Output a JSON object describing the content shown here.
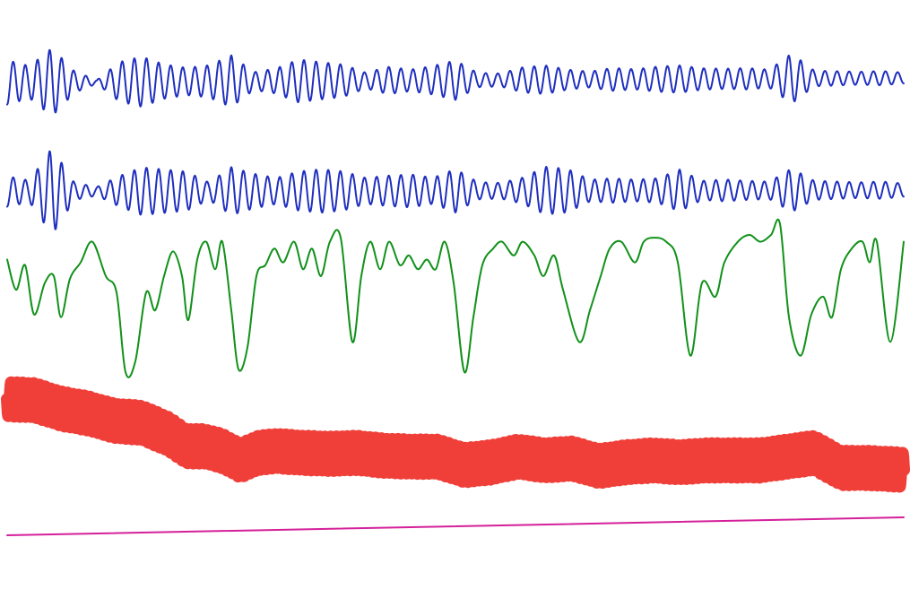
{
  "chart_data": {
    "type": "line",
    "title": "",
    "xlabel": "",
    "ylabel": "",
    "grid": false,
    "legend": "none",
    "axes_visible": false,
    "x_range": [
      0,
      1000
    ],
    "description_of_units": "",
    "series": [
      {
        "key": "trace1",
        "color": "#1f2fbf",
        "style": "oscillation",
        "y_range": [
          -1.0,
          1.0
        ],
        "drift": [
          0.15,
          -0.25
        ],
        "cycles": 74,
        "values": [
          [
            0,
            0.62
          ],
          [
            25,
            0.45
          ],
          [
            50,
            0.95
          ],
          [
            75,
            0.3
          ],
          [
            100,
            0.05
          ],
          [
            125,
            0.55
          ],
          [
            150,
            0.7
          ],
          [
            175,
            0.48
          ],
          [
            200,
            0.38
          ],
          [
            225,
            0.45
          ],
          [
            250,
            0.72
          ],
          [
            275,
            0.25
          ],
          [
            300,
            0.35
          ],
          [
            325,
            0.6
          ],
          [
            350,
            0.52
          ],
          [
            375,
            0.45
          ],
          [
            400,
            0.22
          ],
          [
            425,
            0.38
          ],
          [
            450,
            0.3
          ],
          [
            475,
            0.4
          ],
          [
            500,
            0.55
          ],
          [
            525,
            0.2
          ],
          [
            550,
            0.18
          ],
          [
            575,
            0.35
          ],
          [
            600,
            0.4
          ],
          [
            625,
            0.28
          ],
          [
            650,
            0.22
          ],
          [
            675,
            0.32
          ],
          [
            700,
            0.28
          ],
          [
            725,
            0.35
          ],
          [
            750,
            0.38
          ],
          [
            775,
            0.3
          ],
          [
            800,
            0.28
          ],
          [
            825,
            0.3
          ],
          [
            850,
            0.25
          ],
          [
            875,
            0.7
          ],
          [
            900,
            0.22
          ],
          [
            925,
            0.2
          ],
          [
            950,
            0.18
          ],
          [
            975,
            0.2
          ],
          [
            1000,
            0.15
          ]
        ]
      },
      {
        "key": "trace2",
        "color": "#1f2fbf",
        "style": "oscillation",
        "y_range": [
          -1.0,
          1.0
        ],
        "drift": [
          0.0,
          -0.1
        ],
        "cycles": 74,
        "values": [
          [
            0,
            0.35
          ],
          [
            25,
            0.25
          ],
          [
            50,
            1.0
          ],
          [
            75,
            0.2
          ],
          [
            100,
            0.1
          ],
          [
            125,
            0.35
          ],
          [
            150,
            0.55
          ],
          [
            175,
            0.5
          ],
          [
            200,
            0.45
          ],
          [
            225,
            0.2
          ],
          [
            250,
            0.55
          ],
          [
            275,
            0.4
          ],
          [
            300,
            0.3
          ],
          [
            325,
            0.45
          ],
          [
            350,
            0.5
          ],
          [
            375,
            0.45
          ],
          [
            400,
            0.3
          ],
          [
            425,
            0.35
          ],
          [
            450,
            0.38
          ],
          [
            475,
            0.3
          ],
          [
            500,
            0.5
          ],
          [
            525,
            0.2
          ],
          [
            550,
            0.18
          ],
          [
            575,
            0.3
          ],
          [
            600,
            0.55
          ],
          [
            625,
            0.5
          ],
          [
            650,
            0.25
          ],
          [
            675,
            0.28
          ],
          [
            700,
            0.25
          ],
          [
            725,
            0.28
          ],
          [
            750,
            0.48
          ],
          [
            775,
            0.22
          ],
          [
            800,
            0.25
          ],
          [
            825,
            0.22
          ],
          [
            850,
            0.2
          ],
          [
            875,
            0.5
          ],
          [
            900,
            0.22
          ],
          [
            925,
            0.2
          ],
          [
            950,
            0.18
          ],
          [
            975,
            0.2
          ],
          [
            1000,
            0.15
          ]
        ]
      },
      {
        "key": "trace3",
        "color": "#11911a",
        "style": "smooth",
        "y_range": [
          0,
          1.0
        ],
        "values": [
          [
            0,
            0.18
          ],
          [
            10,
            0.4
          ],
          [
            20,
            0.22
          ],
          [
            30,
            0.58
          ],
          [
            42,
            0.35
          ],
          [
            52,
            0.3
          ],
          [
            60,
            0.6
          ],
          [
            70,
            0.32
          ],
          [
            82,
            0.2
          ],
          [
            95,
            0.05
          ],
          [
            110,
            0.3
          ],
          [
            122,
            0.42
          ],
          [
            132,
            1.0
          ],
          [
            143,
            0.92
          ],
          [
            155,
            0.42
          ],
          [
            165,
            0.55
          ],
          [
            175,
            0.3
          ],
          [
            185,
            0.12
          ],
          [
            195,
            0.3
          ],
          [
            202,
            0.62
          ],
          [
            212,
            0.18
          ],
          [
            222,
            0.05
          ],
          [
            232,
            0.25
          ],
          [
            240,
            0.05
          ],
          [
            250,
            0.55
          ],
          [
            258,
            0.98
          ],
          [
            268,
            0.82
          ],
          [
            278,
            0.3
          ],
          [
            288,
            0.22
          ],
          [
            298,
            0.1
          ],
          [
            308,
            0.2
          ],
          [
            320,
            0.05
          ],
          [
            330,
            0.25
          ],
          [
            340,
            0.1
          ],
          [
            350,
            0.3
          ],
          [
            360,
            0.05
          ],
          [
            372,
            0.02
          ],
          [
            385,
            0.78
          ],
          [
            395,
            0.3
          ],
          [
            405,
            0.05
          ],
          [
            416,
            0.25
          ],
          [
            426,
            0.05
          ],
          [
            438,
            0.22
          ],
          [
            448,
            0.15
          ],
          [
            458,
            0.25
          ],
          [
            468,
            0.18
          ],
          [
            478,
            0.25
          ],
          [
            488,
            0.05
          ],
          [
            498,
            0.35
          ],
          [
            510,
            1.0
          ],
          [
            520,
            0.6
          ],
          [
            530,
            0.22
          ],
          [
            542,
            0.1
          ],
          [
            552,
            0.05
          ],
          [
            565,
            0.15
          ],
          [
            575,
            0.05
          ],
          [
            588,
            0.15
          ],
          [
            598,
            0.3
          ],
          [
            610,
            0.15
          ],
          [
            620,
            0.4
          ],
          [
            638,
            0.78
          ],
          [
            650,
            0.55
          ],
          [
            662,
            0.3
          ],
          [
            672,
            0.1
          ],
          [
            685,
            0.05
          ],
          [
            700,
            0.2
          ],
          [
            710,
            0.05
          ],
          [
            722,
            0.02
          ],
          [
            735,
            0.05
          ],
          [
            748,
            0.2
          ],
          [
            762,
            0.88
          ],
          [
            775,
            0.35
          ],
          [
            790,
            0.45
          ],
          [
            800,
            0.2
          ],
          [
            815,
            0.05
          ],
          [
            828,
            0.0
          ],
          [
            840,
            0.05
          ],
          [
            852,
            0.0
          ],
          [
            862,
            -0.08
          ],
          [
            872,
            0.6
          ],
          [
            885,
            0.88
          ],
          [
            897,
            0.58
          ],
          [
            910,
            0.45
          ],
          [
            920,
            0.6
          ],
          [
            930,
            0.25
          ],
          [
            942,
            0.1
          ],
          [
            954,
            0.05
          ],
          [
            962,
            0.2
          ],
          [
            970,
            0.05
          ],
          [
            985,
            0.78
          ],
          [
            1000,
            0.05
          ]
        ]
      },
      {
        "key": "trace4",
        "color": "#ee2a24",
        "style": "band",
        "y_range": [
          0,
          1.0
        ],
        "band_amplitude": 0.18,
        "cycles": 160,
        "values": [
          [
            0,
            0.05
          ],
          [
            30,
            0.06
          ],
          [
            60,
            0.15
          ],
          [
            90,
            0.2
          ],
          [
            120,
            0.28
          ],
          [
            150,
            0.3
          ],
          [
            180,
            0.42
          ],
          [
            200,
            0.55
          ],
          [
            220,
            0.55
          ],
          [
            240,
            0.6
          ],
          [
            260,
            0.7
          ],
          [
            280,
            0.62
          ],
          [
            300,
            0.6
          ],
          [
            330,
            0.62
          ],
          [
            360,
            0.63
          ],
          [
            390,
            0.62
          ],
          [
            420,
            0.65
          ],
          [
            450,
            0.66
          ],
          [
            480,
            0.66
          ],
          [
            510,
            0.75
          ],
          [
            540,
            0.72
          ],
          [
            570,
            0.66
          ],
          [
            600,
            0.7
          ],
          [
            630,
            0.68
          ],
          [
            660,
            0.76
          ],
          [
            690,
            0.72
          ],
          [
            720,
            0.7
          ],
          [
            750,
            0.72
          ],
          [
            780,
            0.7
          ],
          [
            810,
            0.7
          ],
          [
            840,
            0.7
          ],
          [
            870,
            0.66
          ],
          [
            900,
            0.62
          ],
          [
            930,
            0.78
          ],
          [
            960,
            0.78
          ],
          [
            1000,
            0.8
          ]
        ]
      },
      {
        "key": "trace5",
        "color": "#d4209a",
        "style": "straight",
        "y_range": [
          0,
          1.0
        ],
        "values": [
          [
            0,
            0.0
          ],
          [
            1000,
            1.0
          ]
        ]
      }
    ]
  }
}
